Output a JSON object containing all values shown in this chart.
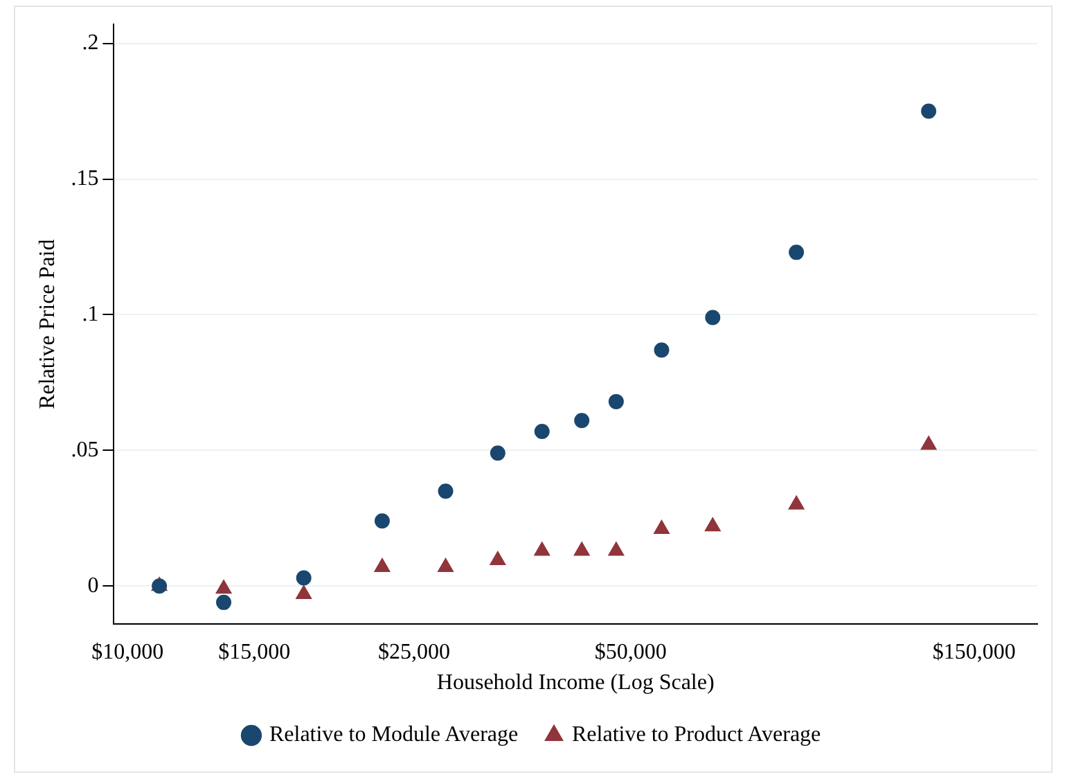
{
  "chart_data": {
    "type": "scatter",
    "xlabel": "Household Income (Log Scale)",
    "ylabel": "Relative Price Paid",
    "x": [
      11070,
      13600,
      17570,
      22580,
      27660,
      32680,
      37650,
      42760,
      47730,
      55200,
      65000,
      84950,
      129700
    ],
    "series": [
      {
        "name": "Relative to Module Average",
        "color": "#1a476f",
        "marker": "circle",
        "values": [
          0,
          -0.006,
          0.003,
          0.024,
          0.035,
          0.049,
          0.057,
          0.061,
          0.068,
          0.087,
          0.099,
          0.123,
          0.175
        ]
      },
      {
        "name": "Relative to Product Average",
        "color": "#90353b",
        "marker": "triangle",
        "values": [
          0,
          -0.001,
          -0.003,
          0.007,
          0.007,
          0.0095,
          0.013,
          0.013,
          0.013,
          0.021,
          0.022,
          0.03,
          0.052
        ]
      }
    ],
    "log": "x",
    "xlim": [
      9570,
      183600
    ],
    "xticks": [
      {
        "value": 10000,
        "label": "$10,000"
      },
      {
        "value": 15000,
        "label": "$15,000"
      },
      {
        "value": 25000,
        "label": "$25,000"
      },
      {
        "value": 50000,
        "label": "$50,000"
      },
      {
        "value": 150000,
        "label": "$150,000"
      }
    ],
    "ylim": [
      -0.014,
      0.207
    ],
    "yticks": [
      0,
      {
        "value": 0.05,
        "label": ".05"
      },
      {
        "value": 0.1,
        "label": ".1"
      },
      {
        "value": 0.15,
        "label": ".15"
      },
      {
        "value": 0.2,
        "label": ".2"
      }
    ],
    "grid": "y",
    "legend": "bottom"
  }
}
